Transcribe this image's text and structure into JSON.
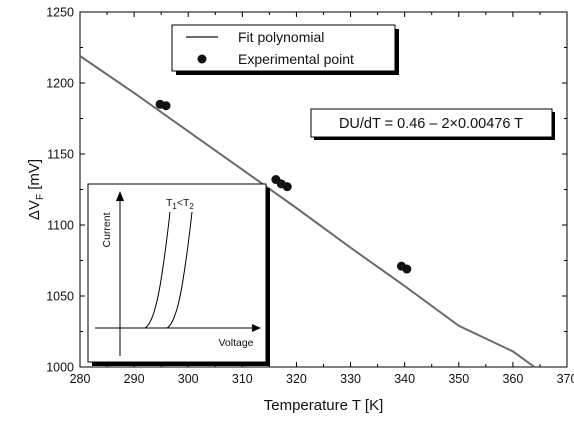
{
  "chart_data": {
    "type": "scatter",
    "xlabel_parts": [
      "Temperature T [K]"
    ],
    "ylabel_parts": [
      "ΔV",
      "F",
      " [mV]"
    ],
    "xlim": [
      280,
      370
    ],
    "ylim": [
      1000,
      1250
    ],
    "x_ticks": [
      280,
      290,
      300,
      310,
      320,
      330,
      340,
      350,
      360,
      370
    ],
    "y_ticks": [
      1000,
      1050,
      1100,
      1150,
      1200,
      1250
    ],
    "x_tick_labels": [
      "280",
      "290",
      "300",
      "310",
      "320",
      "330",
      "340",
      "350",
      "360",
      "370"
    ],
    "y_tick_labels": [
      "1000",
      "1050",
      "1100",
      "1150",
      "1200",
      "1250"
    ],
    "grid": false,
    "legend_position": "top-center",
    "series": [
      {
        "name": "Fit polynomial",
        "kind": "line",
        "color": "#6b6b6b",
        "x": [
          280,
          290,
          300,
          310,
          320,
          330,
          340,
          350,
          360,
          364
        ],
        "y": [
          1219,
          1193,
          1166,
          1139,
          1112,
          1084,
          1057,
          1029,
          1011,
          1000
        ]
      },
      {
        "name": "Experimental point",
        "kind": "scatter",
        "color": "#111111",
        "x": [
          294.8,
          295.9,
          316.2,
          317.2,
          318.3,
          339.4,
          340.4
        ],
        "y": [
          1185,
          1184,
          1132,
          1129,
          1127,
          1071,
          1069
        ]
      }
    ],
    "annotation": {
      "text": "DU/dT = 0.46 – 2×0.00476 T"
    },
    "inset": {
      "y_label": "Current",
      "x_label": "Voltage",
      "curve_label_parts": [
        "T",
        "1",
        "<T",
        "2"
      ]
    }
  }
}
